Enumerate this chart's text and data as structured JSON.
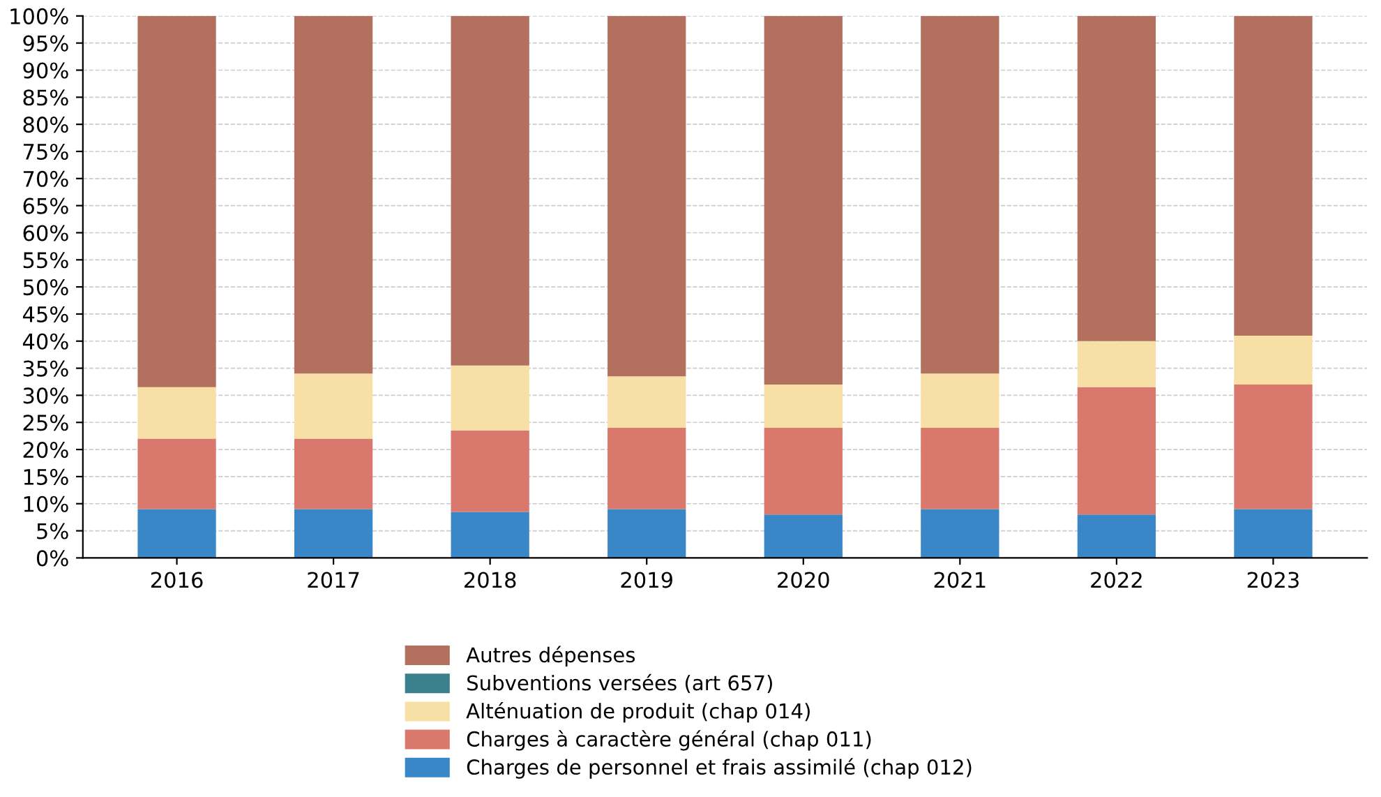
{
  "chart_data": {
    "type": "bar",
    "stacked": true,
    "categories": [
      "2016",
      "2017",
      "2018",
      "2019",
      "2020",
      "2021",
      "2022",
      "2023"
    ],
    "series": [
      {
        "name": "Charges de personnel et frais assimilé (chap 012)",
        "color": "#3a87c8",
        "values": [
          9,
          9,
          8.5,
          9,
          8,
          9,
          8,
          9
        ]
      },
      {
        "name": "Charges à caractère général (chap 011)",
        "color": "#d9786c",
        "values": [
          13,
          13,
          15,
          15,
          16,
          15,
          23.5,
          23
        ]
      },
      {
        "name": "Alténuation de produit (chap 014)",
        "color": "#f7dfa6",
        "values": [
          9.5,
          12,
          12,
          9.5,
          8,
          10,
          8.5,
          9
        ]
      },
      {
        "name": "Subventions versées (art 657)",
        "color": "#3a7f8c",
        "values": [
          0,
          0,
          0,
          0,
          0,
          0,
          0,
          0
        ]
      },
      {
        "name": "Autres dépenses",
        "color": "#b3705f",
        "values": [
          68.5,
          66,
          64.5,
          66.5,
          68,
          66,
          60,
          59
        ]
      }
    ],
    "ylim": [
      0,
      100
    ],
    "yticks": [
      {
        "value": 0,
        "label": "0%"
      },
      {
        "value": 5,
        "label": "5%"
      },
      {
        "value": 10,
        "label": "10%"
      },
      {
        "value": 15,
        "label": "15%"
      },
      {
        "value": 20,
        "label": "20%"
      },
      {
        "value": 25,
        "label": "25%"
      },
      {
        "value": 30,
        "label": "30%"
      },
      {
        "value": 35,
        "label": "35%"
      },
      {
        "value": 40,
        "label": "40%"
      },
      {
        "value": 45,
        "label": "45%"
      },
      {
        "value": 50,
        "label": "50%"
      },
      {
        "value": 55,
        "label": "55%"
      },
      {
        "value": 60,
        "label": "60%"
      },
      {
        "value": 65,
        "label": "65%"
      },
      {
        "value": 70,
        "label": "70%"
      },
      {
        "value": 75,
        "label": "75%"
      },
      {
        "value": 80,
        "label": "80%"
      },
      {
        "value": 85,
        "label": "85%"
      },
      {
        "value": 90,
        "label": "90%"
      },
      {
        "value": 95,
        "label": "95%"
      },
      {
        "value": 100,
        "label": "100%"
      }
    ],
    "grid": "y",
    "legend": "bottom"
  }
}
